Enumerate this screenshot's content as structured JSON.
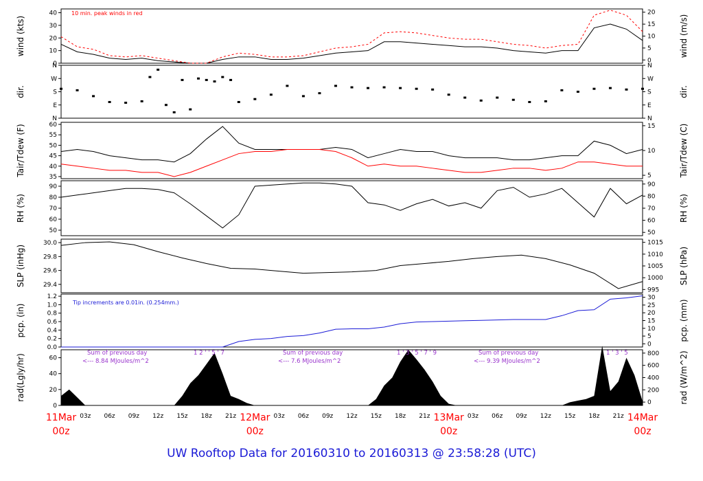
{
  "page": {
    "title": "UW Rooftop Data for 20160310  to  20160313 @ 23:58:28  (UTC)"
  },
  "time_axis": {
    "tick_labels": [
      "03z",
      "06z",
      "09z",
      "12z",
      "15z",
      "18z",
      "21z",
      "03z",
      "06z",
      "09z",
      "12z",
      "15z",
      "18z",
      "21z",
      "03z",
      "06z",
      "09z",
      "12z",
      "15z",
      "18z",
      "21z"
    ],
    "day_labels": [
      {
        "date": "11Mar",
        "time": "00z"
      },
      {
        "date": "12Mar",
        "time": "00z"
      },
      {
        "date": "13Mar",
        "time": "00z"
      },
      {
        "date": "14Mar",
        "time": "00z"
      }
    ],
    "range_hours": [
      0,
      72
    ]
  },
  "chart_data": [
    {
      "type": "line",
      "name": "wind",
      "ylabel_left": "wind (kts)",
      "ylabel_right": "wind (m/s)",
      "annotation": "10 min. peak winds in red",
      "ylim": [
        0,
        43
      ],
      "left_ticks": [
        "0",
        "10",
        "20",
        "30",
        "40"
      ],
      "right_ticks": [
        "0",
        "5",
        "10",
        "15",
        "20"
      ],
      "colors": {
        "mean": "#000000",
        "peak": "#ff0000"
      },
      "x": [
        0,
        2,
        4,
        6,
        8,
        10,
        12,
        14,
        16,
        18,
        20,
        22,
        24,
        26,
        28,
        30,
        32,
        34,
        36,
        38,
        40,
        42,
        44,
        46,
        48,
        50,
        52,
        54,
        56,
        58,
        60,
        62,
        64,
        66,
        68,
        70,
        72
      ],
      "series": [
        {
          "values": [
            15,
            9,
            7,
            4,
            3,
            4,
            2,
            1,
            0,
            0,
            3,
            5,
            5,
            3,
            3,
            4,
            6,
            8,
            9,
            10,
            17,
            17,
            16,
            15,
            14,
            13,
            13,
            12,
            10,
            9,
            8,
            10,
            10,
            28,
            31,
            27,
            18
          ]
        },
        {
          "values": [
            21,
            13,
            11,
            6,
            5,
            6,
            4,
            2,
            0,
            0,
            5,
            8,
            7,
            5,
            5,
            6,
            9,
            12,
            13,
            15,
            24,
            25,
            24,
            22,
            20,
            19,
            19,
            17,
            15,
            14,
            12,
            14,
            15,
            38,
            42,
            38,
            25
          ]
        }
      ]
    },
    {
      "type": "scatter",
      "name": "dir",
      "ylabel_left": "dir.",
      "ylabel_right": "dir.",
      "left_ticks": [
        "N",
        "E",
        "S",
        "W",
        "N"
      ],
      "right_ticks": [
        "N",
        "E",
        "S",
        "W",
        "N"
      ],
      "ylim": [
        0,
        360
      ],
      "x": [
        0,
        2,
        4,
        6,
        8,
        10,
        11,
        12,
        13,
        14,
        15,
        16,
        17,
        18,
        19,
        20,
        21,
        22,
        24,
        26,
        28,
        30,
        32,
        34,
        36,
        38,
        40,
        42,
        44,
        46,
        48,
        50,
        52,
        54,
        56,
        58,
        60,
        62,
        64,
        66,
        68,
        70,
        72
      ],
      "values": [
        200,
        190,
        150,
        110,
        105,
        115,
        280,
        330,
        90,
        40,
        260,
        60,
        270,
        260,
        250,
        280,
        260,
        110,
        130,
        160,
        220,
        150,
        170,
        220,
        210,
        205,
        210,
        205,
        200,
        195,
        160,
        140,
        120,
        140,
        125,
        110,
        115,
        190,
        180,
        200,
        205,
        195,
        200
      ]
    },
    {
      "type": "line",
      "name": "temperature",
      "ylabel_left": "Tair/Tdew (F)",
      "ylabel_right": "Tair/Tdew (C)",
      "ylim": [
        34,
        61
      ],
      "left_ticks": [
        "35",
        "40",
        "45",
        "50",
        "55",
        "60"
      ],
      "right_ticks": [
        "5",
        "10",
        "15"
      ],
      "colors": {
        "tair": "#000000",
        "tdew": "#ff0000"
      },
      "x": [
        0,
        2,
        4,
        6,
        8,
        10,
        12,
        14,
        16,
        18,
        20,
        22,
        24,
        26,
        28,
        30,
        32,
        34,
        36,
        38,
        40,
        42,
        44,
        46,
        48,
        50,
        52,
        54,
        56,
        58,
        60,
        62,
        64,
        66,
        68,
        70,
        72
      ],
      "series": [
        {
          "values": [
            47,
            48,
            47,
            45,
            44,
            43,
            43,
            42,
            46,
            53,
            59,
            51,
            48,
            48,
            48,
            48,
            48,
            49,
            48,
            44,
            46,
            48,
            47,
            47,
            45,
            44,
            44,
            44,
            43,
            43,
            44,
            45,
            45,
            52,
            50,
            46,
            48
          ]
        },
        {
          "values": [
            41,
            40,
            39,
            38,
            38,
            37,
            37,
            35,
            37,
            40,
            43,
            46,
            47,
            47,
            48,
            48,
            48,
            47,
            44,
            40,
            41,
            40,
            40,
            39,
            38,
            37,
            37,
            38,
            39,
            39,
            38,
            39,
            42,
            42,
            41,
            40,
            40
          ]
        }
      ]
    },
    {
      "type": "line",
      "name": "rh",
      "ylabel_left": "RH (%)",
      "ylabel_right": "RH (%)",
      "ylim": [
        45,
        95
      ],
      "left_ticks": [
        "50",
        "60",
        "70",
        "80",
        "90"
      ],
      "right_ticks": [
        "50",
        "60",
        "70",
        "80",
        "90"
      ],
      "x": [
        0,
        2,
        4,
        6,
        8,
        10,
        12,
        14,
        16,
        18,
        20,
        22,
        24,
        26,
        28,
        30,
        32,
        34,
        36,
        38,
        40,
        42,
        44,
        46,
        48,
        50,
        52,
        54,
        56,
        58,
        60,
        62,
        64,
        66,
        68,
        70,
        72
      ],
      "values": [
        80,
        82,
        84,
        86,
        88,
        88,
        87,
        84,
        74,
        63,
        52,
        64,
        90,
        91,
        92,
        93,
        93,
        92,
        90,
        75,
        73,
        68,
        74,
        78,
        72,
        75,
        70,
        86,
        89,
        80,
        83,
        88,
        75,
        62,
        88,
        74,
        82
      ]
    },
    {
      "type": "line",
      "name": "slp",
      "ylabel_left": "SLP (inHg)",
      "ylabel_right": "SLP (hPa)",
      "ylim": [
        29.28,
        30.05
      ],
      "left_ticks": [
        "29.4",
        "29.6",
        "29.8",
        "30.0"
      ],
      "right_ticks": [
        "995",
        "1000",
        "1005",
        "1010",
        "1015"
      ],
      "x": [
        0,
        3,
        6,
        9,
        12,
        15,
        18,
        21,
        24,
        27,
        30,
        33,
        36,
        39,
        42,
        45,
        48,
        51,
        54,
        57,
        60,
        63,
        66,
        69,
        72
      ],
      "values": [
        29.96,
        30.0,
        30.01,
        29.97,
        29.87,
        29.78,
        29.7,
        29.63,
        29.62,
        29.59,
        29.56,
        29.57,
        29.58,
        29.6,
        29.67,
        29.7,
        29.73,
        29.77,
        29.8,
        29.82,
        29.77,
        29.68,
        29.56,
        29.34,
        29.44
      ]
    },
    {
      "type": "line",
      "name": "precip",
      "ylabel_left": "pcp. (in)",
      "ylabel_right": "pcp. (mm)",
      "annotation": "Tip increments are 0.01in. (0.254mm.)",
      "ylim": [
        0,
        1.25
      ],
      "left_ticks": [
        "0.0",
        "0.2",
        "0.4",
        "0.6",
        "0.8",
        "1.0",
        "1.2"
      ],
      "right_ticks": [
        "0",
        "5",
        "10",
        "15",
        "20",
        "25",
        "30"
      ],
      "colors": {
        "line": "#1a1ad6"
      },
      "x": [
        0,
        10,
        20,
        22,
        24,
        26,
        28,
        30,
        32,
        34,
        36,
        38,
        40,
        42,
        44,
        46,
        48,
        50,
        52,
        54,
        56,
        58,
        60,
        62,
        64,
        66,
        68,
        70,
        72
      ],
      "values": [
        0,
        0,
        0,
        0.13,
        0.18,
        0.2,
        0.25,
        0.27,
        0.33,
        0.42,
        0.43,
        0.43,
        0.47,
        0.55,
        0.59,
        0.6,
        0.61,
        0.62,
        0.63,
        0.64,
        0.65,
        0.65,
        0.65,
        0.74,
        0.86,
        0.88,
        1.13,
        1.16,
        1.21
      ]
    },
    {
      "type": "area",
      "name": "radiation",
      "ylabel_left": "rad(Lgly/hr)",
      "ylabel_right": "rad (W/m^2)",
      "ylim": [
        0,
        70
      ],
      "left_ticks": [
        "0",
        "20",
        "40",
        "60"
      ],
      "right_ticks": [
        "0",
        "200",
        "400",
        "600",
        "800"
      ],
      "annotations": [
        {
          "text": "Sum of previous day",
          "sub": "<--- 8.84 MJoules/m^2",
          "hour_marks": "1   2  '  '  5     '     7"
        },
        {
          "text": "Sum of previous day",
          "sub": "<--- 7.6 MJoules/m^2",
          "hour_marks": "1  '  3  '  5  '  7  '    9"
        },
        {
          "text": "Sum of previous day",
          "sub": "<--- 9.39 MJoules/m^2",
          "hour_marks": "1  '  3  '  5"
        }
      ],
      "colors": {
        "fill": "#000000",
        "annotation": "#9933cc"
      },
      "x": [
        0,
        1,
        2,
        3,
        10,
        14,
        15,
        16,
        17,
        18,
        19,
        20,
        21,
        22,
        23,
        24,
        25,
        38,
        39,
        40,
        41,
        42,
        43,
        44,
        45,
        46,
        47,
        48,
        49,
        50,
        62,
        63,
        64,
        65,
        66,
        67,
        68,
        69,
        70,
        71,
        72
      ],
      "values": [
        12,
        20,
        10,
        0,
        0,
        0,
        12,
        28,
        38,
        52,
        66,
        40,
        12,
        8,
        3,
        0,
        0,
        0,
        8,
        25,
        35,
        55,
        70,
        58,
        45,
        30,
        12,
        2,
        0,
        0,
        0,
        4,
        6,
        8,
        12,
        75,
        18,
        30,
        60,
        38,
        5
      ]
    }
  ]
}
